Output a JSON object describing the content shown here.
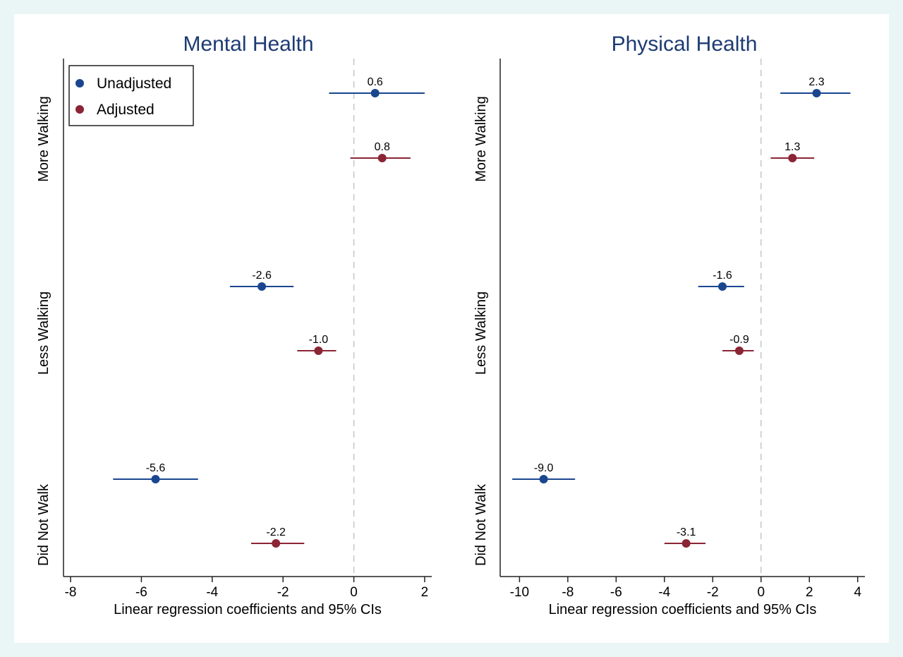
{
  "colors": {
    "unadjusted": "#1a4690",
    "adjusted": "#8b2535",
    "title": "#1d3b73",
    "background": "#eaf6f6",
    "reference_line": "#bfc7cc"
  },
  "legend": {
    "placement": "top-left",
    "items": [
      {
        "label": "Unadjusted",
        "color": "#1a4690"
      },
      {
        "label": "Adjusted",
        "color": "#8b2535"
      }
    ]
  },
  "chart_data": [
    {
      "type": "scatter",
      "subtype": "forest-plot",
      "title": "Mental Health",
      "xlabel": "Linear regression coefficients and 95% CIs",
      "xlim": [
        -8.2,
        2.2
      ],
      "xticks": [
        -8,
        -6,
        -4,
        -2,
        0,
        2
      ],
      "xtick_labels": [
        "-8",
        "-6",
        "-4",
        "-2",
        "0",
        "2"
      ],
      "reference_line": 0,
      "categories": [
        "More Walking",
        "Less Walking",
        "Did Not Walk"
      ],
      "series": [
        {
          "name": "Unadjusted",
          "estimates": [
            0.6,
            -2.6,
            -5.6
          ],
          "lower": [
            -0.7,
            -3.5,
            -6.8
          ],
          "upper": [
            2.0,
            -1.7,
            -4.4
          ],
          "labels": [
            "0.6",
            "-2.6",
            "-5.6"
          ]
        },
        {
          "name": "Adjusted",
          "estimates": [
            0.8,
            -1.0,
            -2.2
          ],
          "lower": [
            -0.1,
            -1.6,
            -2.9
          ],
          "upper": [
            1.6,
            -0.5,
            -1.4
          ],
          "labels": [
            "0.8",
            "-1.0",
            "-2.2"
          ]
        }
      ]
    },
    {
      "type": "scatter",
      "subtype": "forest-plot",
      "title": "Physical Health",
      "xlabel": "Linear regression coefficients and 95% CIs",
      "xlim": [
        -10.8,
        4.3
      ],
      "xticks": [
        -10,
        -8,
        -6,
        -4,
        -2,
        0,
        2,
        4
      ],
      "xtick_labels": [
        "-10",
        "-8",
        "-6",
        "-4",
        "-2",
        "0",
        "2",
        "4"
      ],
      "reference_line": 0,
      "categories": [
        "More Walking",
        "Less Walking",
        "Did Not Walk"
      ],
      "series": [
        {
          "name": "Unadjusted",
          "estimates": [
            2.3,
            -1.6,
            -9.0
          ],
          "lower": [
            0.8,
            -2.6,
            -10.3
          ],
          "upper": [
            3.7,
            -0.7,
            -7.7
          ],
          "labels": [
            "2.3",
            "-1.6",
            "-9.0"
          ]
        },
        {
          "name": "Adjusted",
          "estimates": [
            1.3,
            -0.9,
            -3.1
          ],
          "lower": [
            0.4,
            -1.6,
            -4.0
          ],
          "upper": [
            2.2,
            -0.3,
            -2.3
          ],
          "labels": [
            "1.3",
            "-0.9",
            "-3.1"
          ]
        }
      ]
    }
  ]
}
